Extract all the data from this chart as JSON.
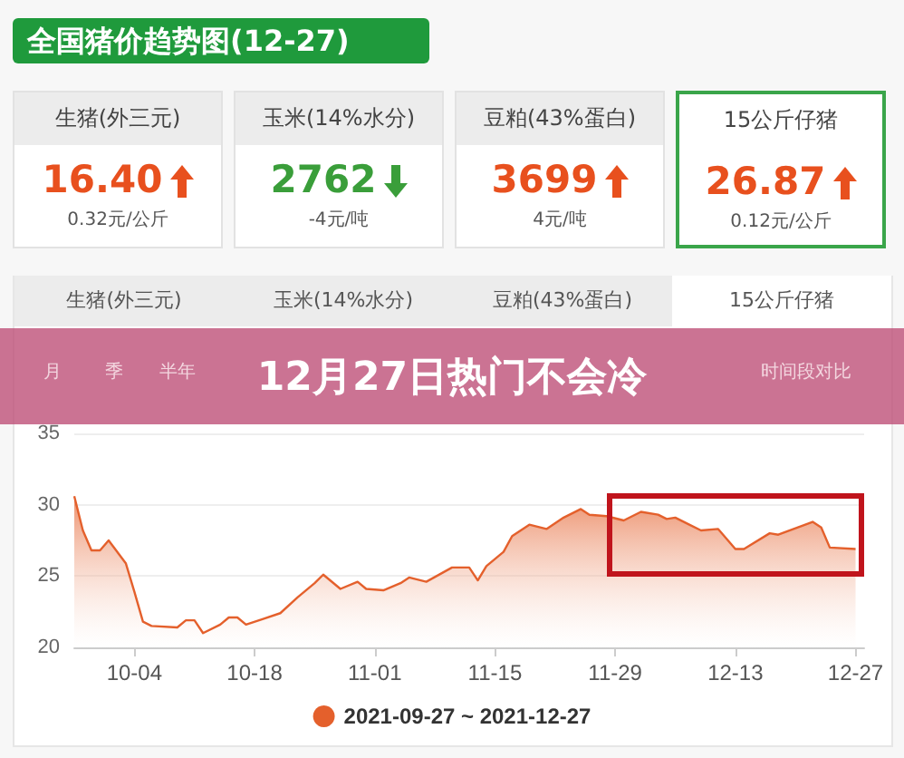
{
  "chart_data": {
    "type": "area",
    "title": "全国猪价趋势图(12-27)",
    "annotations": [
      "生猪(外三元)",
      "16.40",
      "0.32元/公斤",
      "玉米(14%水分)",
      "2762",
      "-4元/吨",
      "豆粕(43%蛋白)",
      "3699",
      "4元/吨",
      "15公斤仔猪",
      "26.87",
      "0.12元/公斤",
      "生猪(外三元)",
      "玉米(14%水分)",
      "豆粕(43%蛋白)",
      "15公斤仔猪",
      "月",
      "季",
      "半年",
      "时间段对比",
      "12月27日热门不会冷"
    ],
    "x": [
      "2021-09-27",
      "2021-09-28",
      "2021-09-29",
      "2021-09-30",
      "2021-10-01",
      "2021-10-03",
      "2021-10-04",
      "2021-10-05",
      "2021-10-06",
      "2021-10-09",
      "2021-10-10",
      "2021-10-11",
      "2021-10-12",
      "2021-10-14",
      "2021-10-15",
      "2021-10-16",
      "2021-10-17",
      "2021-10-19",
      "2021-10-21",
      "2021-10-23",
      "2021-10-25",
      "2021-10-26",
      "2021-10-28",
      "2021-10-30",
      "2021-10-31",
      "2021-11-02",
      "2021-11-04",
      "2021-11-05",
      "2021-11-07",
      "2021-11-10",
      "2021-11-12",
      "2021-11-13",
      "2021-11-14",
      "2021-11-16",
      "2021-11-17",
      "2021-11-19",
      "2021-11-21",
      "2021-11-23",
      "2021-11-25",
      "2021-11-26",
      "2021-11-28",
      "2021-11-30",
      "2021-12-02",
      "2021-12-04",
      "2021-12-05",
      "2021-12-06",
      "2021-12-09",
      "2021-12-11",
      "2021-12-13",
      "2021-12-14",
      "2021-12-17",
      "2021-12-18",
      "2021-12-22",
      "2021-12-23",
      "2021-12-24",
      "2021-12-27"
    ],
    "series": [
      {
        "name": "2021-09-27 ~ 2021-12-27",
        "color": "#e4602c",
        "values": [
          30.6,
          28.2,
          26.8,
          26.8,
          27.5,
          25.9,
          23.9,
          21.8,
          21.5,
          21.4,
          21.9,
          21.9,
          21.0,
          21.6,
          22.1,
          22.1,
          21.6,
          22.0,
          22.4,
          23.5,
          24.5,
          25.1,
          24.1,
          24.6,
          24.1,
          24.0,
          24.5,
          24.9,
          24.6,
          25.6,
          25.6,
          24.7,
          25.7,
          26.7,
          27.8,
          28.6,
          28.3,
          29.1,
          29.7,
          29.3,
          29.2,
          28.9,
          29.5,
          29.3,
          29.0,
          29.1,
          28.2,
          28.3,
          26.9,
          26.9,
          28.0,
          27.9,
          28.8,
          28.4,
          27.0,
          26.9
        ]
      }
    ],
    "xlim": [
      "2021-09-27",
      "2021-12-28"
    ],
    "xticks": [
      {
        "value": "2021-10-04",
        "label": "10-04"
      },
      {
        "value": "2021-10-18",
        "label": "10-18"
      },
      {
        "value": "2021-11-01",
        "label": "11-01"
      },
      {
        "value": "2021-11-15",
        "label": "11-15"
      },
      {
        "value": "2021-11-29",
        "label": "11-29"
      },
      {
        "value": "2021-12-13",
        "label": "12-13"
      },
      {
        "value": "2021-12-27",
        "label": "12-27"
      }
    ],
    "ylim": [
      20,
      35
    ],
    "yticks": [
      20,
      25,
      30,
      35
    ],
    "grid": "y",
    "legend": "bottom",
    "marker": "none",
    "line_style": "solid"
  }
}
